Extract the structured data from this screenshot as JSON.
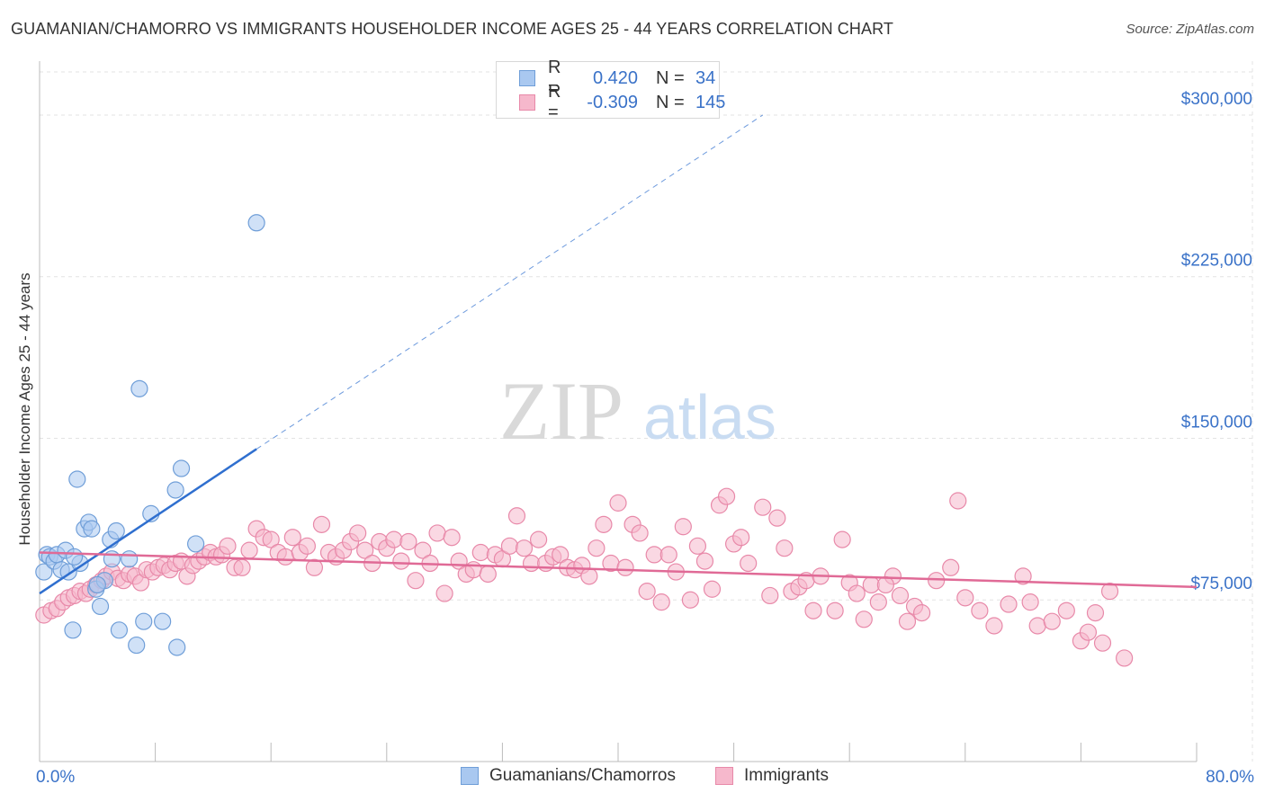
{
  "header": {
    "title": "GUAMANIAN/CHAMORRO VS IMMIGRANTS HOUSEHOLDER INCOME AGES 25 - 44 YEARS CORRELATION CHART",
    "source": "Source: ZipAtlas.com"
  },
  "colors": {
    "blue_fill": "#a9c8f0",
    "blue_stroke": "#6f9ed8",
    "blue_line": "#2f6fcf",
    "pink_fill": "#f6b8cc",
    "pink_stroke": "#e889a9",
    "pink_line": "#e06a96",
    "axis_label": "#3a72c8",
    "grid": "#e3e3e3"
  },
  "legend_top": {
    "rows": [
      {
        "r_label": "R =",
        "r_value": "0.420",
        "n_label": "N =",
        "n_value": "34"
      },
      {
        "r_label": "R =",
        "r_value": "-0.309",
        "n_label": "N =",
        "n_value": "145"
      }
    ]
  },
  "legend_bottom": {
    "items": [
      {
        "label": "Guamanians/Chamorros"
      },
      {
        "label": "Immigrants"
      }
    ]
  },
  "watermark": {
    "part1": "ZIP",
    "part2": "atlas"
  },
  "chart_data": {
    "type": "scatter",
    "title": "GUAMANIAN/CHAMORRO VS IMMIGRANTS HOUSEHOLDER INCOME AGES 25 - 44 YEARS CORRELATION CHART",
    "xlabel": "",
    "ylabel": "Householder Income Ages 25 - 44 years",
    "xlim": [
      0,
      80
    ],
    "ylim": [
      0,
      320000
    ],
    "x_tick_labels": [
      "0.0%",
      "80.0%"
    ],
    "y_ticks": [
      75000,
      150000,
      225000,
      300000
    ],
    "y_tick_labels": [
      "$75,000",
      "$150,000",
      "$225,000",
      "$300,000"
    ],
    "grid": true,
    "series": [
      {
        "name": "Guamanians/Chamorros",
        "r": 0.42,
        "n": 34,
        "trend": {
          "x0": 0,
          "y0": 78000,
          "x1": 15,
          "y1": 145000,
          "extends_dashed_to": [
            50,
            300000
          ]
        },
        "points": [
          [
            0.3,
            88000
          ],
          [
            0.5,
            96000
          ],
          [
            0.7,
            95000
          ],
          [
            1.0,
            93000
          ],
          [
            1.2,
            96000
          ],
          [
            1.5,
            89000
          ],
          [
            1.8,
            98000
          ],
          [
            2.0,
            88000
          ],
          [
            2.3,
            61000
          ],
          [
            2.6,
            131000
          ],
          [
            2.8,
            92000
          ],
          [
            3.1,
            108000
          ],
          [
            3.4,
            111000
          ],
          [
            3.6,
            108000
          ],
          [
            3.9,
            80000
          ],
          [
            4.2,
            72000
          ],
          [
            4.5,
            84000
          ],
          [
            4.9,
            103000
          ],
          [
            5.0,
            94000
          ],
          [
            5.3,
            107000
          ],
          [
            5.5,
            61000
          ],
          [
            6.2,
            94000
          ],
          [
            6.7,
            54000
          ],
          [
            6.9,
            173000
          ],
          [
            7.2,
            65000
          ],
          [
            7.7,
            115000
          ],
          [
            8.5,
            65000
          ],
          [
            9.4,
            126000
          ],
          [
            9.5,
            53000
          ],
          [
            9.8,
            136000
          ],
          [
            10.8,
            101000
          ],
          [
            15.0,
            250000
          ],
          [
            2.4,
            95000
          ],
          [
            4.0,
            82000
          ]
        ]
      },
      {
        "name": "Immigrants",
        "r": -0.309,
        "n": 145,
        "trend": {
          "x0": 0,
          "y0": 97000,
          "x1": 80,
          "y1": 81000
        },
        "points": [
          [
            0.3,
            68000
          ],
          [
            0.8,
            70000
          ],
          [
            1.2,
            71000
          ],
          [
            1.6,
            74000
          ],
          [
            2.0,
            76000
          ],
          [
            2.4,
            77000
          ],
          [
            2.8,
            79000
          ],
          [
            3.2,
            78000
          ],
          [
            3.5,
            80000
          ],
          [
            3.9,
            82000
          ],
          [
            4.3,
            84000
          ],
          [
            4.6,
            86000
          ],
          [
            5.0,
            88000
          ],
          [
            5.4,
            85000
          ],
          [
            5.8,
            84000
          ],
          [
            6.2,
            87000
          ],
          [
            6.6,
            86000
          ],
          [
            7.0,
            83000
          ],
          [
            7.4,
            89000
          ],
          [
            7.8,
            88000
          ],
          [
            8.2,
            90000
          ],
          [
            8.6,
            91000
          ],
          [
            9.0,
            89000
          ],
          [
            9.4,
            92000
          ],
          [
            9.8,
            93000
          ],
          [
            10.2,
            86000
          ],
          [
            10.6,
            91000
          ],
          [
            11.0,
            93000
          ],
          [
            11.4,
            95000
          ],
          [
            11.8,
            97000
          ],
          [
            12.2,
            95000
          ],
          [
            12.6,
            96000
          ],
          [
            13.0,
            100000
          ],
          [
            13.5,
            90000
          ],
          [
            14.0,
            90000
          ],
          [
            14.5,
            98000
          ],
          [
            15.0,
            108000
          ],
          [
            15.5,
            104000
          ],
          [
            16.0,
            103000
          ],
          [
            16.5,
            97000
          ],
          [
            17.0,
            95000
          ],
          [
            17.5,
            104000
          ],
          [
            18.0,
            97000
          ],
          [
            18.5,
            100000
          ],
          [
            19.0,
            90000
          ],
          [
            19.5,
            110000
          ],
          [
            20.0,
            97000
          ],
          [
            20.5,
            95000
          ],
          [
            21.0,
            98000
          ],
          [
            21.5,
            102000
          ],
          [
            22.0,
            106000
          ],
          [
            22.5,
            98000
          ],
          [
            23.0,
            92000
          ],
          [
            23.5,
            102000
          ],
          [
            24.0,
            99000
          ],
          [
            24.5,
            103000
          ],
          [
            25.0,
            93000
          ],
          [
            25.5,
            102000
          ],
          [
            26.0,
            84000
          ],
          [
            26.5,
            98000
          ],
          [
            27.0,
            92000
          ],
          [
            27.5,
            106000
          ],
          [
            28.0,
            78000
          ],
          [
            28.5,
            104000
          ],
          [
            29.0,
            93000
          ],
          [
            29.5,
            87000
          ],
          [
            30.0,
            89000
          ],
          [
            30.5,
            97000
          ],
          [
            31.0,
            87000
          ],
          [
            31.5,
            96000
          ],
          [
            32.0,
            94000
          ],
          [
            32.5,
            100000
          ],
          [
            33.0,
            114000
          ],
          [
            33.5,
            99000
          ],
          [
            34.0,
            92000
          ],
          [
            34.5,
            103000
          ],
          [
            35.0,
            92000
          ],
          [
            35.5,
            95000
          ],
          [
            36.0,
            96000
          ],
          [
            36.5,
            90000
          ],
          [
            37.0,
            89000
          ],
          [
            37.5,
            91000
          ],
          [
            38.0,
            86000
          ],
          [
            38.5,
            99000
          ],
          [
            39.0,
            110000
          ],
          [
            39.5,
            92000
          ],
          [
            40.0,
            120000
          ],
          [
            40.5,
            90000
          ],
          [
            41.0,
            110000
          ],
          [
            41.5,
            106000
          ],
          [
            42.0,
            79000
          ],
          [
            42.5,
            96000
          ],
          [
            43.0,
            74000
          ],
          [
            43.5,
            96000
          ],
          [
            44.0,
            88000
          ],
          [
            44.5,
            109000
          ],
          [
            45.0,
            75000
          ],
          [
            45.5,
            100000
          ],
          [
            46.0,
            93000
          ],
          [
            46.5,
            80000
          ],
          [
            47.0,
            119000
          ],
          [
            47.5,
            123000
          ],
          [
            48.0,
            101000
          ],
          [
            48.5,
            104000
          ],
          [
            49.0,
            92000
          ],
          [
            50.0,
            118000
          ],
          [
            50.5,
            77000
          ],
          [
            51.0,
            113000
          ],
          [
            51.5,
            99000
          ],
          [
            52.0,
            79000
          ],
          [
            52.5,
            81000
          ],
          [
            53.0,
            84000
          ],
          [
            53.5,
            70000
          ],
          [
            54.0,
            86000
          ],
          [
            55.0,
            70000
          ],
          [
            55.5,
            103000
          ],
          [
            56.0,
            83000
          ],
          [
            56.5,
            78000
          ],
          [
            57.0,
            66000
          ],
          [
            57.5,
            82000
          ],
          [
            58.0,
            74000
          ],
          [
            59.0,
            86000
          ],
          [
            59.5,
            77000
          ],
          [
            60.0,
            65000
          ],
          [
            60.5,
            72000
          ],
          [
            61.0,
            69000
          ],
          [
            62.0,
            84000
          ],
          [
            63.0,
            90000
          ],
          [
            63.5,
            121000
          ],
          [
            64.0,
            76000
          ],
          [
            65.0,
            70000
          ],
          [
            66.0,
            63000
          ],
          [
            67.0,
            73000
          ],
          [
            68.0,
            86000
          ],
          [
            68.5,
            74000
          ],
          [
            69.0,
            63000
          ],
          [
            70.0,
            65000
          ],
          [
            71.0,
            70000
          ],
          [
            72.0,
            56000
          ],
          [
            72.5,
            60000
          ],
          [
            73.0,
            69000
          ],
          [
            73.5,
            55000
          ],
          [
            74.0,
            79000
          ],
          [
            75.0,
            48000
          ],
          [
            58.5,
            82000
          ]
        ]
      }
    ]
  }
}
